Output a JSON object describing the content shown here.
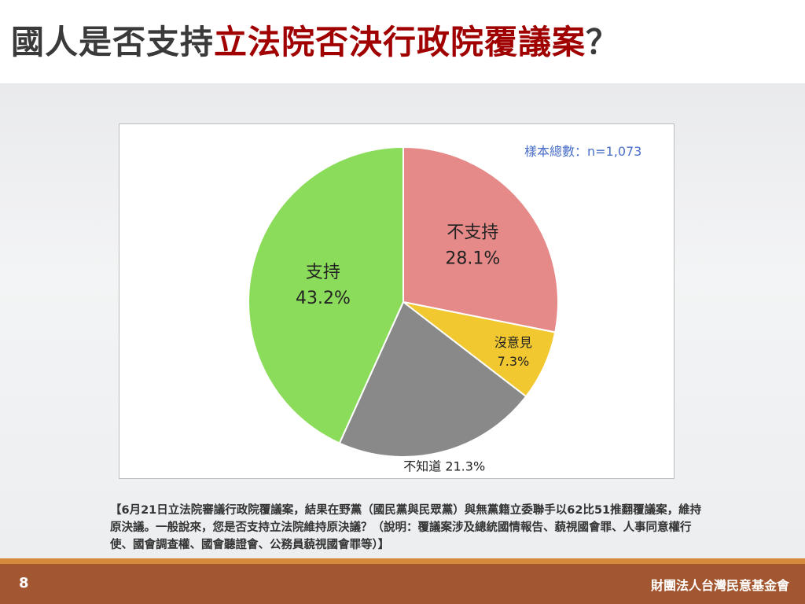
{
  "title": {
    "prefix": "國人是否支持",
    "highlight": "立法院否決行政院覆議案",
    "suffix": "？"
  },
  "sample_label": "樣本總數：n=1,073",
  "chart_data": {
    "type": "pie",
    "slices": [
      {
        "label": "不支持",
        "value": 28.1,
        "display": "28.1%",
        "color": "#e58a88"
      },
      {
        "label": "沒意見",
        "value": 7.3,
        "display": "7.3%",
        "color": "#f2c830"
      },
      {
        "label": "不知道",
        "value": 21.3,
        "display": "21.3%",
        "color": "#898989"
      },
      {
        "label": "支持",
        "value": 43.2,
        "display": "43.2%",
        "color": "#8cdc5c"
      }
    ],
    "legend": "none"
  },
  "note": "【6月21日立法院審議行政院覆議案，結果在野黨（國民黨與民眾黨）與無黨籍立委聯手以62比51推翻覆議案，維持原決議。一般說來，您是否支持立法院維持原決議？（說明：覆議案涉及總統國情報告、藐視國會罪、人事同意權行使、國會調查權、國會聽證會、公務員藐視國會罪等）】",
  "footer": {
    "page": "8",
    "org": "財團法人台灣民意基金會"
  }
}
